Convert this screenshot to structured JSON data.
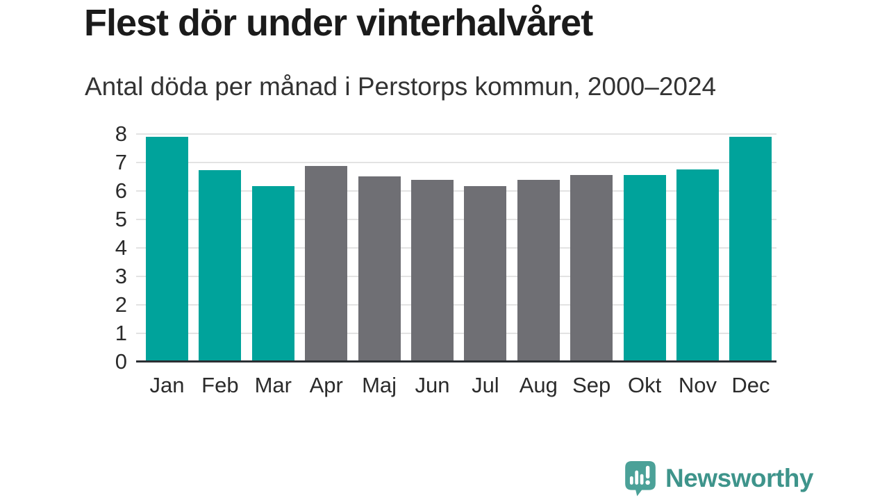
{
  "header": {
    "title": "Flest dör under vinterhalvåret",
    "subtitle": "Antal döda per månad i Perstorps kommun, 2000–2024"
  },
  "chart_data": {
    "type": "bar",
    "title": "Flest dör under vinterhalvåret",
    "subtitle": "Antal döda per månad i Perstorps kommun, 2000–2024",
    "categories": [
      "Jan",
      "Feb",
      "Mar",
      "Apr",
      "Maj",
      "Jun",
      "Jul",
      "Aug",
      "Sep",
      "Okt",
      "Nov",
      "Dec"
    ],
    "values": [
      7.9,
      6.72,
      6.17,
      6.88,
      6.52,
      6.38,
      6.17,
      6.38,
      6.56,
      6.56,
      6.76,
      7.9
    ],
    "highlighted_categories": [
      "Jan",
      "Feb",
      "Mar",
      "Okt",
      "Nov",
      "Dec"
    ],
    "xlabel": "",
    "ylabel": "",
    "ylim": [
      0,
      8
    ],
    "y_ticks": [
      0,
      1,
      2,
      3,
      4,
      5,
      6,
      7,
      8
    ],
    "grid": "horizontal",
    "legend": "none",
    "colors": {
      "highlight_bar": "#00a39b",
      "default_bar": "#6f6f74",
      "gridline": "#e3e3e3",
      "axis_line": "#2b2f33"
    }
  },
  "footer": {
    "logo_text": "Newsworthy",
    "logo_text_color": "#3e948b",
    "logo_bubble_color": "#4ba198",
    "logo_icon": "bar-chart-speech-bubble-icon"
  }
}
